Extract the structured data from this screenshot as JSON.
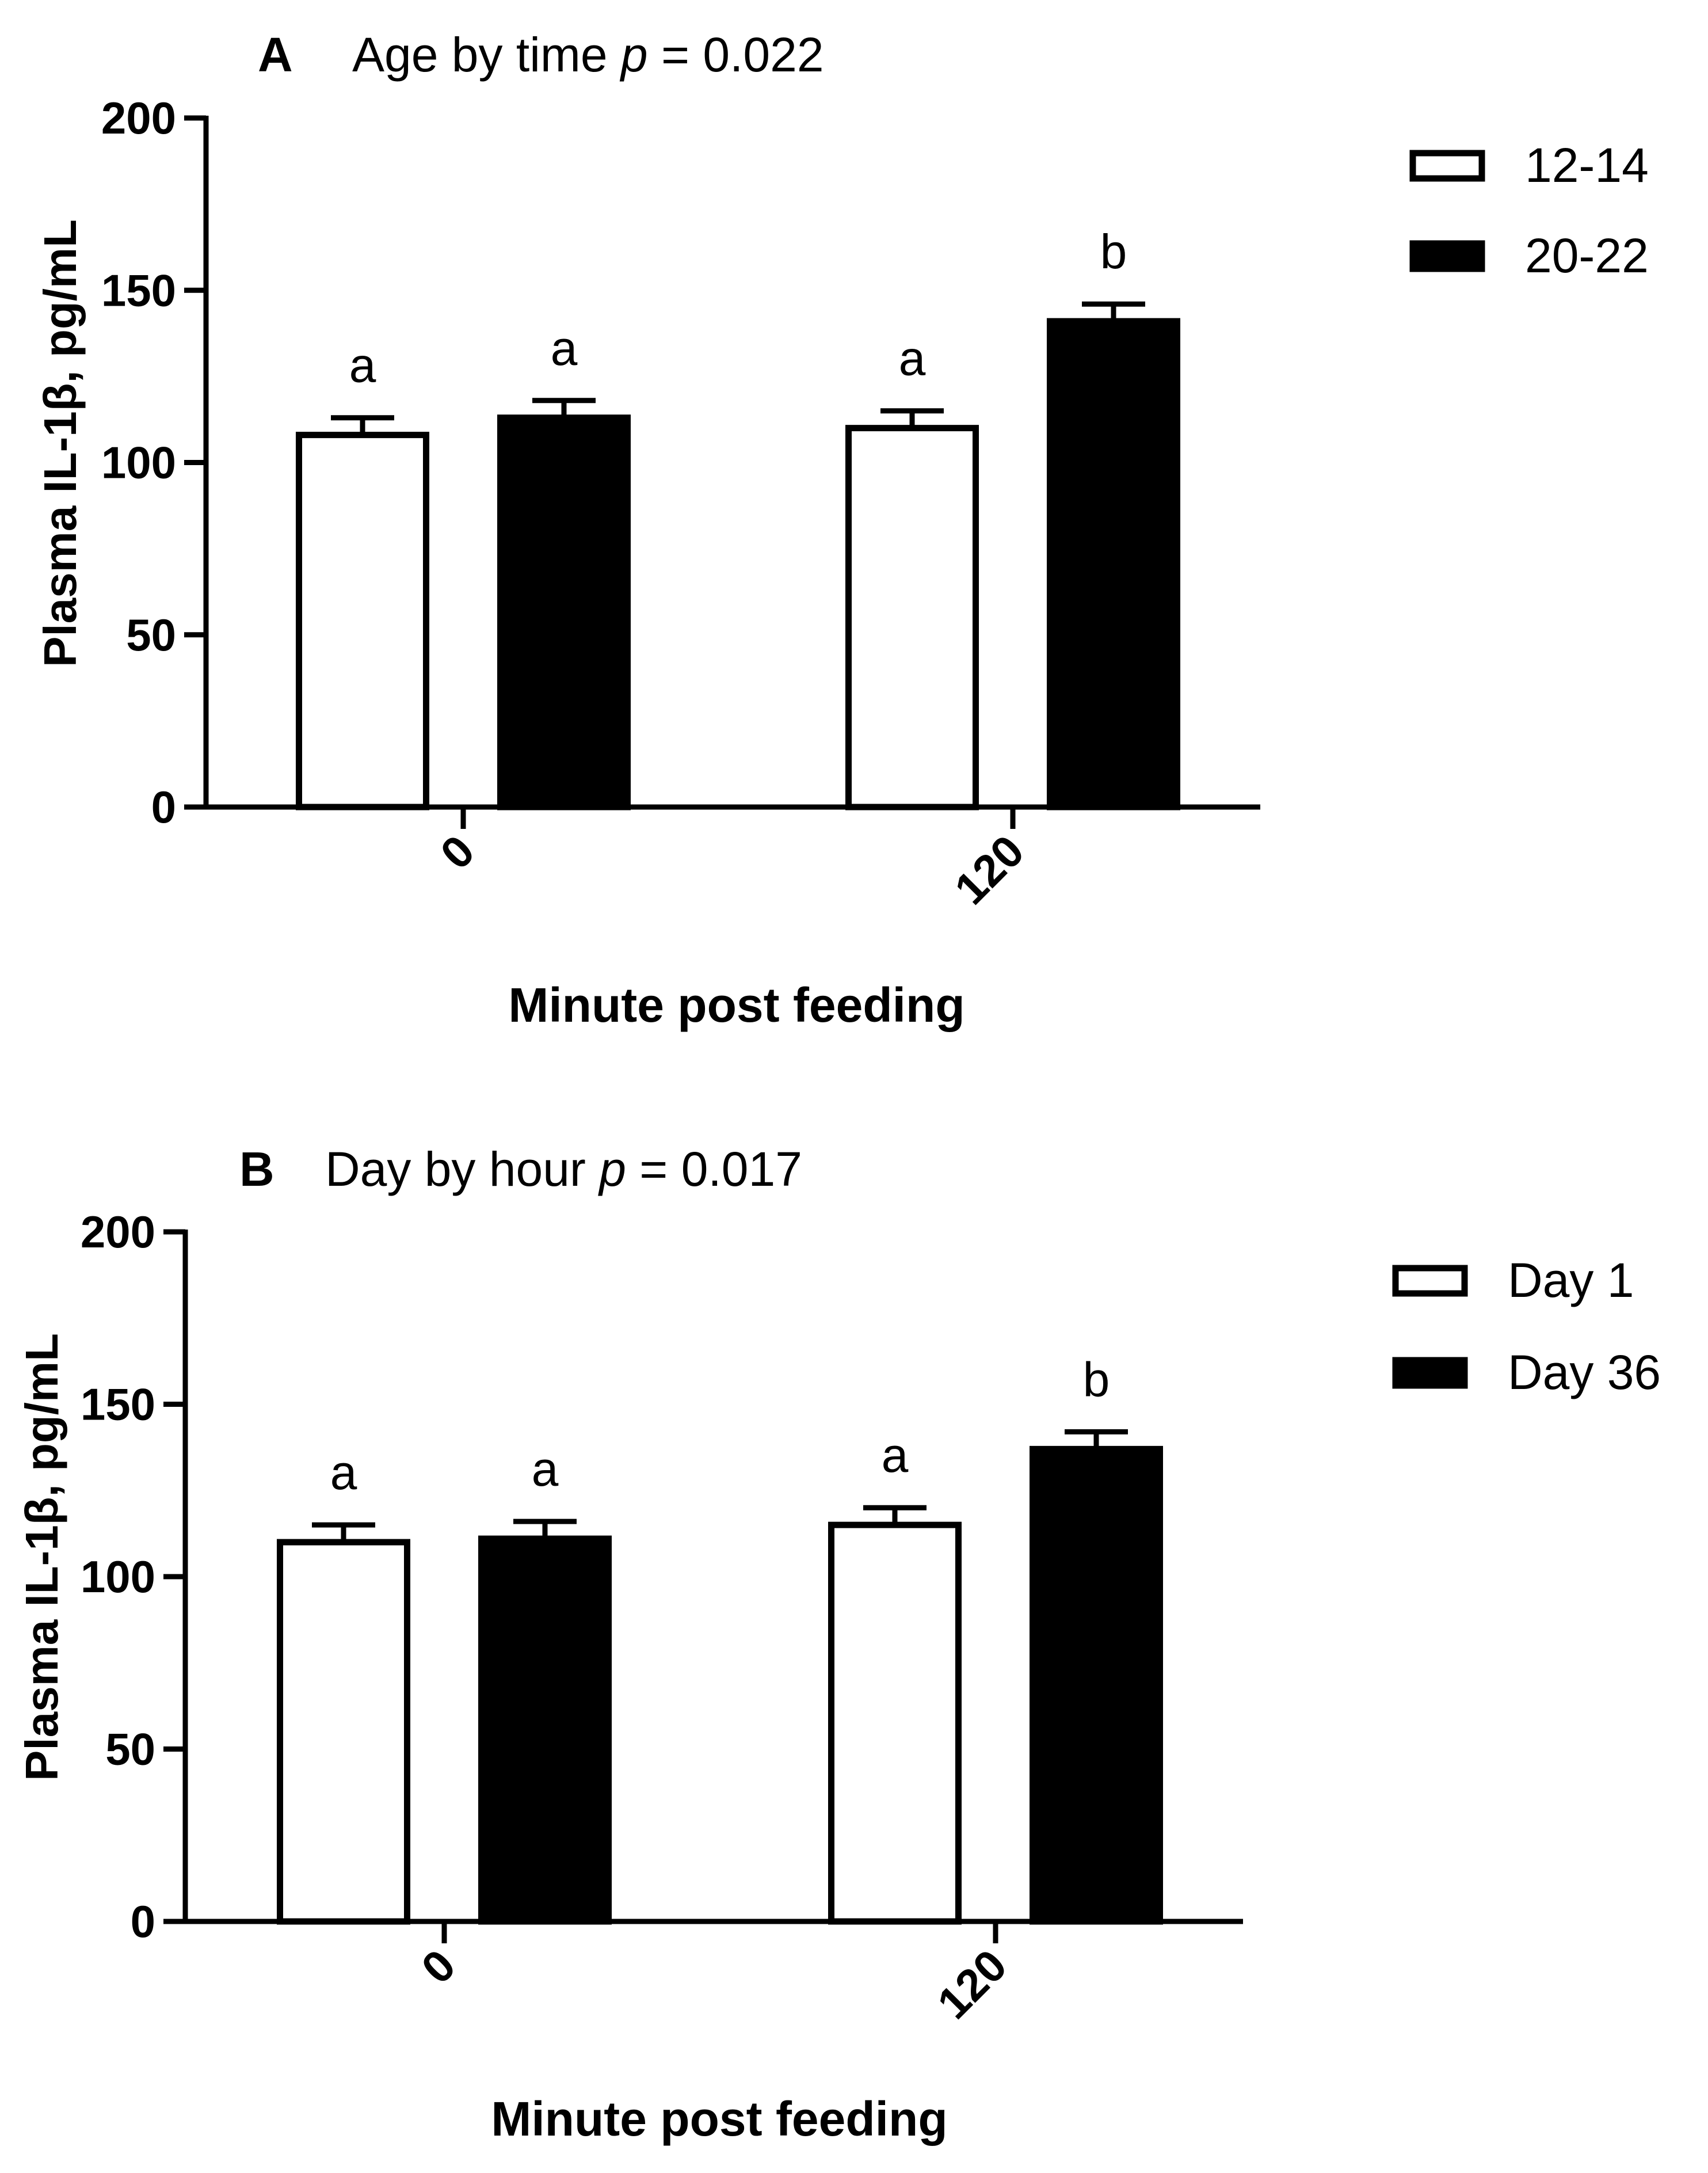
{
  "chart_data": [
    {
      "type": "bar",
      "panel_label": "A",
      "title": "Age by time",
      "title_p": "p",
      "title_p_value": " = 0.022",
      "xlabel": "Minute post feeding",
      "ylabel": "Plasma IL-1β, pg/mL",
      "ylim": [
        0,
        200
      ],
      "yticks": [
        0,
        50,
        100,
        150,
        200
      ],
      "categories": [
        "0",
        "120"
      ],
      "legend_position": "top-right",
      "series": [
        {
          "name": "12-14",
          "fill": "#ffffff",
          "values": [
            108,
            110
          ],
          "errors": [
            5,
            5
          ],
          "letters": [
            "a",
            "a"
          ]
        },
        {
          "name": "20-22",
          "fill": "#000000",
          "values": [
            113,
            141
          ],
          "errors": [
            5,
            5
          ],
          "letters": [
            "a",
            "b"
          ]
        }
      ]
    },
    {
      "type": "bar",
      "panel_label": "B",
      "title": "Day by hour",
      "title_p": "p",
      "title_p_value": " = 0.017",
      "xlabel": "Minute post feeding",
      "ylabel": "Plasma IL-1β, pg/mL",
      "ylim": [
        0,
        200
      ],
      "yticks": [
        0,
        50,
        100,
        150,
        200
      ],
      "categories": [
        "0",
        "120"
      ],
      "legend_position": "top-right",
      "series": [
        {
          "name": "Day 1",
          "fill": "#ffffff",
          "values": [
            110,
            115
          ],
          "errors": [
            5,
            5
          ],
          "letters": [
            "a",
            "a"
          ]
        },
        {
          "name": "Day 36",
          "fill": "#000000",
          "values": [
            111,
            137
          ],
          "errors": [
            5,
            5
          ],
          "letters": [
            "a",
            "b"
          ]
        }
      ]
    }
  ]
}
